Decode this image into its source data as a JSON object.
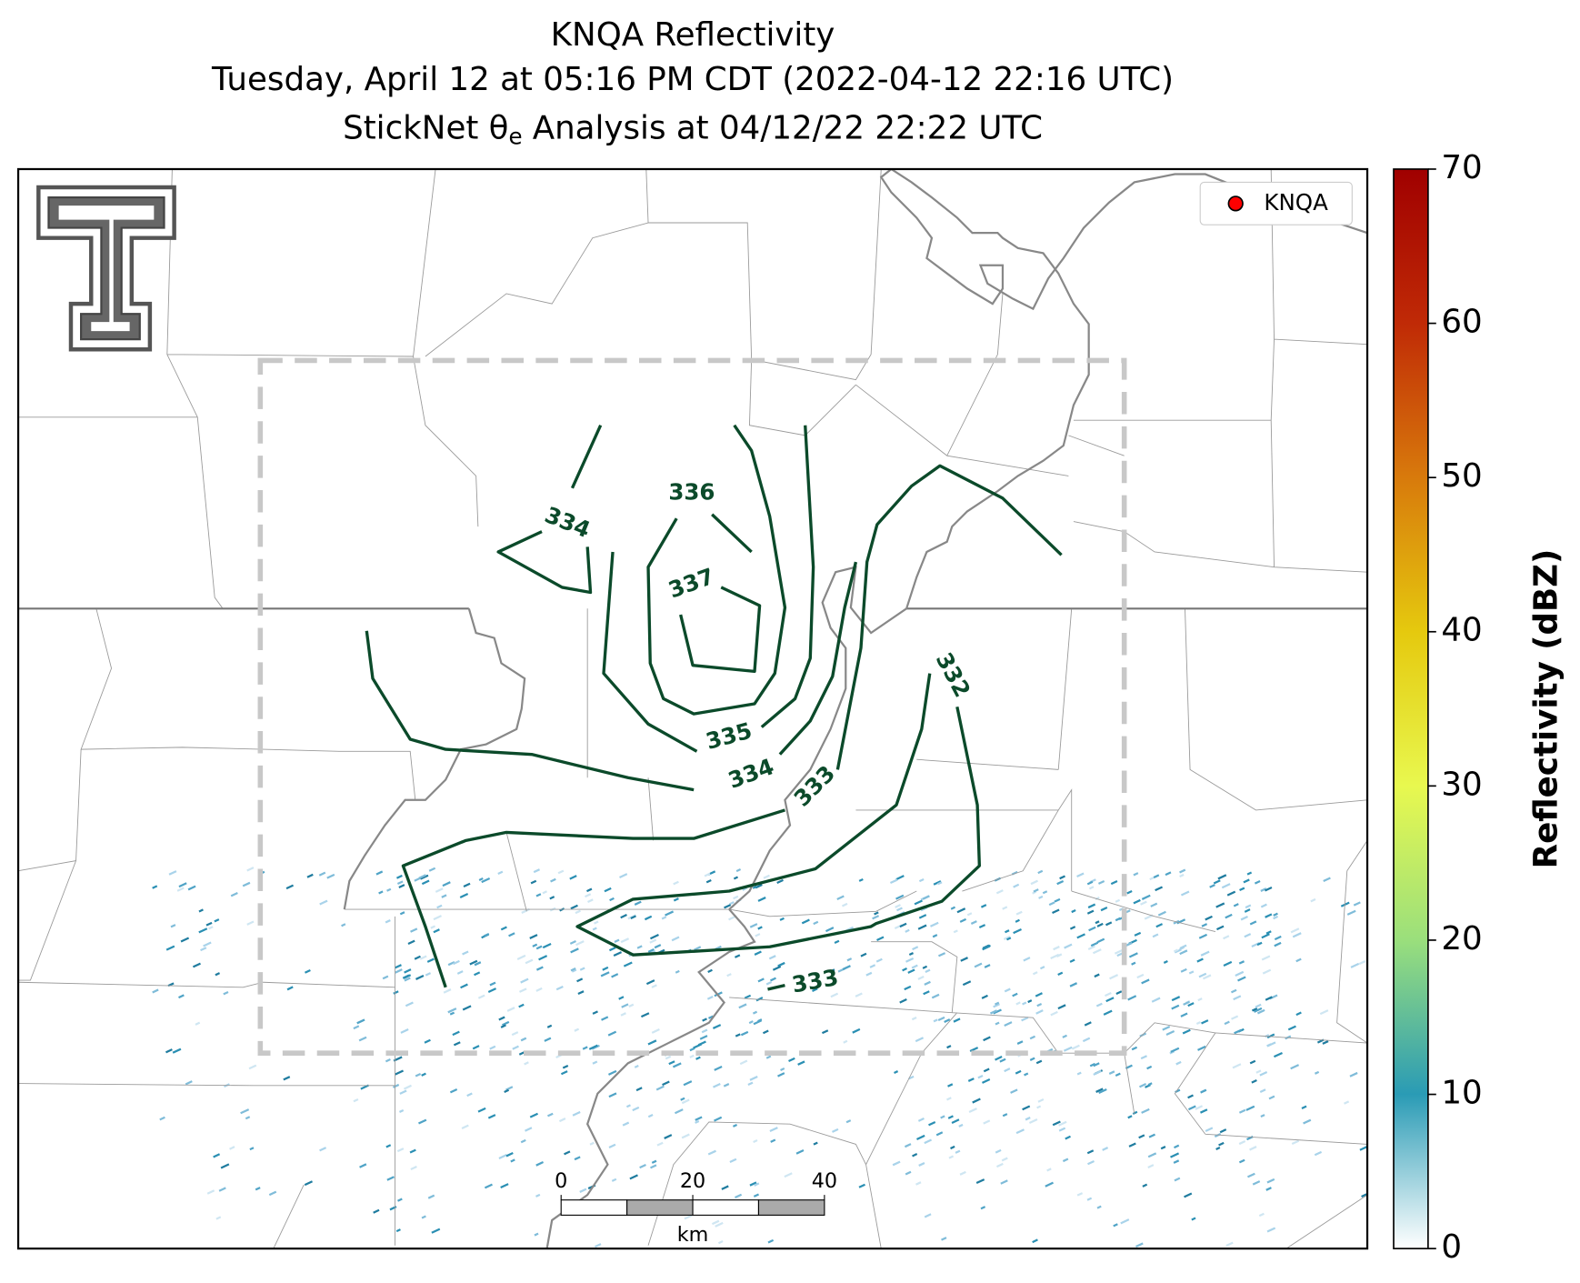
{
  "header": {
    "title_lines": [
      "KNQA Reflectivity",
      "Tuesday, April 12 at 05:16 PM CDT (2022-04-12 22:16 UTC)"
    ],
    "analysis_line": {
      "text": "StickNet θ",
      "subscript": "e",
      "rest": "Analysis at 04/12/22 22:22 UTC"
    }
  },
  "legend": {
    "label": "KNQA",
    "color": "#ff0000"
  },
  "colorbar": {
    "label": "Reflectivity (dBZ)",
    "lim": [
      0,
      70
    ],
    "ticks": [
      0,
      10,
      20,
      30,
      40,
      50,
      60,
      70
    ],
    "colors": [
      "#ffffff",
      "#2a9bb5",
      "#9adf7c",
      "#e8f84f",
      "#e5c90e",
      "#d87a0c",
      "#c02a06",
      "#a00000"
    ]
  },
  "contours": {
    "color": "#0b4a2a",
    "labels": [
      334,
      336,
      337,
      335,
      334,
      333,
      332,
      333
    ]
  },
  "scale_bar": {
    "ticks": [
      0,
      20,
      40
    ],
    "unit": "km"
  }
}
